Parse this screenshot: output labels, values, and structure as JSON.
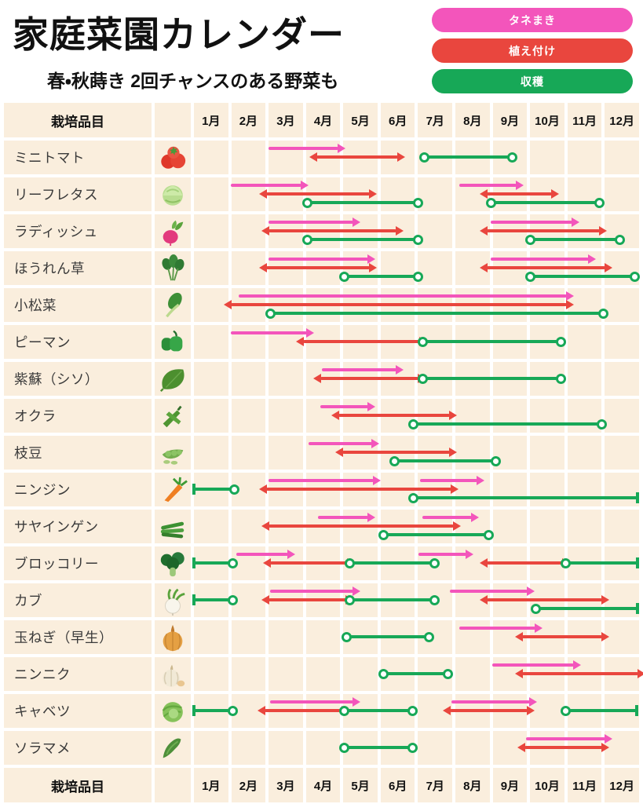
{
  "header": {
    "title": "家庭菜園カレンダー",
    "subtitle": "春・秋蒔き 2回チャンスのある野菜も"
  },
  "legend": {
    "items": [
      {
        "key": "sow",
        "label": "タネまき",
        "color": "#f355bb"
      },
      {
        "key": "plant",
        "label": "植え付け",
        "color": "#e9463e"
      },
      {
        "key": "harvest",
        "label": "収穫",
        "color": "#17a857"
      }
    ]
  },
  "table": {
    "first_column_header": "栽培品目",
    "months": [
      "1月",
      "2月",
      "3月",
      "4月",
      "5月",
      "6月",
      "7月",
      "8月",
      "9月",
      "10月",
      "11月",
      "12月"
    ]
  },
  "colors": {
    "sow": "#f355bb",
    "plant": "#e9463e",
    "harvest": "#17a857",
    "cell_background": "#faeedd",
    "grid_line": "#ffffff"
  },
  "chart_data": {
    "type": "gantt",
    "unit": "month",
    "x_range": [
      1,
      13
    ],
    "x_ticks": [
      "1月",
      "2月",
      "3月",
      "4月",
      "5月",
      "6月",
      "7月",
      "8月",
      "9月",
      "10月",
      "11月",
      "12月"
    ],
    "legend": [
      {
        "key": "sow",
        "label": "タネまき",
        "color": "#f355bb",
        "style": "arrow-right"
      },
      {
        "key": "plant",
        "label": "植え付け",
        "color": "#e9463e",
        "style": "arrow-both"
      },
      {
        "key": "harvest",
        "label": "収穫",
        "color": "#17a857",
        "style": "line-circle-ends"
      }
    ],
    "rows": [
      {
        "name": "ミニトマト",
        "icon": "tomato",
        "segments": [
          {
            "type": "sow",
            "start": 3.0,
            "end": 4.9
          },
          {
            "type": "plant",
            "start": 4.3,
            "end": 6.5
          },
          {
            "type": "harvest",
            "start": 7.2,
            "end": 9.6
          }
        ]
      },
      {
        "name": "リーフレタス",
        "icon": "lettuce",
        "segments": [
          {
            "type": "sow",
            "start": 2.0,
            "end": 3.9
          },
          {
            "type": "plant",
            "start": 2.95,
            "end": 5.75
          },
          {
            "type": "harvest",
            "start": 4.05,
            "end": 7.05
          },
          {
            "type": "sow",
            "start": 8.15,
            "end": 9.7
          },
          {
            "type": "plant",
            "start": 8.9,
            "end": 10.65
          },
          {
            "type": "harvest",
            "start": 9.0,
            "end": 11.95
          }
        ]
      },
      {
        "name": "ラディッシュ",
        "icon": "radish",
        "segments": [
          {
            "type": "sow",
            "start": 3.0,
            "end": 5.3
          },
          {
            "type": "plant",
            "start": 3.0,
            "end": 6.45
          },
          {
            "type": "harvest",
            "start": 4.05,
            "end": 7.05
          },
          {
            "type": "sow",
            "start": 9.0,
            "end": 11.2
          },
          {
            "type": "plant",
            "start": 8.9,
            "end": 11.95
          },
          {
            "type": "harvest",
            "start": 10.05,
            "end": 12.5
          }
        ]
      },
      {
        "name": "ほうれん草",
        "icon": "spinach",
        "segments": [
          {
            "type": "sow",
            "start": 3.0,
            "end": 5.7
          },
          {
            "type": "plant",
            "start": 2.95,
            "end": 5.75
          },
          {
            "type": "harvest",
            "start": 5.05,
            "end": 7.05
          },
          {
            "type": "sow",
            "start": 9.0,
            "end": 11.65
          },
          {
            "type": "plant",
            "start": 8.9,
            "end": 12.1
          },
          {
            "type": "harvest",
            "start": 10.05,
            "end": 12.9
          }
        ]
      },
      {
        "name": "小松菜",
        "icon": "komatsuna",
        "segments": [
          {
            "type": "sow",
            "start": 2.2,
            "end": 11.05
          },
          {
            "type": "plant",
            "start": 2.0,
            "end": 11.05
          },
          {
            "type": "harvest",
            "start": 3.05,
            "end": 12.05
          }
        ]
      },
      {
        "name": "ピーマン",
        "icon": "green-pepper",
        "segments": [
          {
            "type": "sow",
            "start": 2.0,
            "end": 4.05
          },
          {
            "type": "plant",
            "start": 3.95,
            "end": 7.1
          },
          {
            "type": "harvest",
            "start": 7.15,
            "end": 10.9
          }
        ]
      },
      {
        "name": "紫蘇（シソ）",
        "icon": "shiso",
        "segments": [
          {
            "type": "sow",
            "start": 4.45,
            "end": 6.45
          },
          {
            "type": "plant",
            "start": 4.4,
            "end": 7.05
          },
          {
            "type": "harvest",
            "start": 7.15,
            "end": 10.9
          }
        ]
      },
      {
        "name": "オクラ",
        "icon": "okra",
        "segments": [
          {
            "type": "sow",
            "start": 4.4,
            "end": 5.7
          },
          {
            "type": "plant",
            "start": 4.9,
            "end": 7.9
          },
          {
            "type": "harvest",
            "start": 6.9,
            "end": 12.0
          }
        ]
      },
      {
        "name": "枝豆",
        "icon": "edamame",
        "segments": [
          {
            "type": "sow",
            "start": 4.1,
            "end": 5.8
          },
          {
            "type": "plant",
            "start": 5.0,
            "end": 7.9
          },
          {
            "type": "harvest",
            "start": 6.4,
            "end": 9.15
          }
        ]
      },
      {
        "name": "ニンジン",
        "icon": "carrot",
        "segments": [
          {
            "type": "harvest",
            "start": 1.0,
            "end": 2.1,
            "caps": [
              "flat",
              "circle"
            ]
          },
          {
            "type": "sow",
            "start": 3.0,
            "end": 5.85
          },
          {
            "type": "plant",
            "start": 2.95,
            "end": 7.95
          },
          {
            "type": "sow",
            "start": 7.1,
            "end": 8.65
          },
          {
            "type": "harvest",
            "start": 6.9,
            "end": 12.97,
            "caps": [
              "circle",
              "flat"
            ]
          }
        ]
      },
      {
        "name": "サヤインゲン",
        "icon": "green-beans",
        "segments": [
          {
            "type": "sow",
            "start": 4.35,
            "end": 5.7
          },
          {
            "type": "plant",
            "start": 3.0,
            "end": 8.0
          },
          {
            "type": "sow",
            "start": 7.15,
            "end": 8.5
          },
          {
            "type": "harvest",
            "start": 6.1,
            "end": 8.95
          }
        ]
      },
      {
        "name": "ブロッコリー",
        "icon": "broccoli",
        "segments": [
          {
            "type": "harvest",
            "start": 1.0,
            "end": 2.05,
            "caps": [
              "flat",
              "circle"
            ]
          },
          {
            "type": "sow",
            "start": 2.15,
            "end": 3.55
          },
          {
            "type": "plant",
            "start": 3.05,
            "end": 5.15
          },
          {
            "type": "harvest",
            "start": 5.2,
            "end": 7.5
          },
          {
            "type": "sow",
            "start": 7.05,
            "end": 8.35
          },
          {
            "type": "plant",
            "start": 8.9,
            "end": 10.95
          },
          {
            "type": "harvest",
            "start": 11.0,
            "end": 12.97,
            "caps": [
              "circle",
              "flat"
            ]
          }
        ]
      },
      {
        "name": "カブ",
        "icon": "turnip",
        "segments": [
          {
            "type": "harvest",
            "start": 1.0,
            "end": 2.05,
            "caps": [
              "flat",
              "circle"
            ]
          },
          {
            "type": "sow",
            "start": 3.05,
            "end": 5.3
          },
          {
            "type": "plant",
            "start": 3.0,
            "end": 5.1
          },
          {
            "type": "harvest",
            "start": 5.2,
            "end": 7.5
          },
          {
            "type": "sow",
            "start": 7.9,
            "end": 10.0
          },
          {
            "type": "plant",
            "start": 8.9,
            "end": 12.0
          },
          {
            "type": "harvest",
            "start": 10.2,
            "end": 12.97,
            "caps": [
              "circle",
              "flat"
            ]
          }
        ]
      },
      {
        "name": "玉ねぎ（早生）",
        "icon": "onion",
        "segments": [
          {
            "type": "harvest",
            "start": 5.1,
            "end": 7.35
          },
          {
            "type": "sow",
            "start": 8.15,
            "end": 10.2
          },
          {
            "type": "plant",
            "start": 9.85,
            "end": 12.0
          }
        ]
      },
      {
        "name": "ニンニク",
        "icon": "garlic",
        "segments": [
          {
            "type": "harvest",
            "start": 6.1,
            "end": 7.85
          },
          {
            "type": "sow",
            "start": 9.05,
            "end": 11.25
          },
          {
            "type": "plant",
            "start": 9.85,
            "end": 12.97
          }
        ]
      },
      {
        "name": "キャベツ",
        "icon": "cabbage",
        "segments": [
          {
            "type": "harvest",
            "start": 1.0,
            "end": 2.05,
            "caps": [
              "flat",
              "circle"
            ]
          },
          {
            "type": "sow",
            "start": 3.05,
            "end": 5.3
          },
          {
            "type": "plant",
            "start": 2.9,
            "end": 5.0
          },
          {
            "type": "harvest",
            "start": 5.05,
            "end": 6.9
          },
          {
            "type": "sow",
            "start": 7.95,
            "end": 10.05
          },
          {
            "type": "plant",
            "start": 7.9,
            "end": 10.0
          },
          {
            "type": "harvest",
            "start": 11.0,
            "end": 12.95,
            "caps": [
              "circle",
              "flat"
            ]
          }
        ]
      },
      {
        "name": "ソラマメ",
        "icon": "broad-bean",
        "segments": [
          {
            "type": "harvest",
            "start": 5.05,
            "end": 6.9
          },
          {
            "type": "sow",
            "start": 9.95,
            "end": 12.1
          },
          {
            "type": "plant",
            "start": 9.9,
            "end": 12.0
          }
        ]
      }
    ]
  }
}
